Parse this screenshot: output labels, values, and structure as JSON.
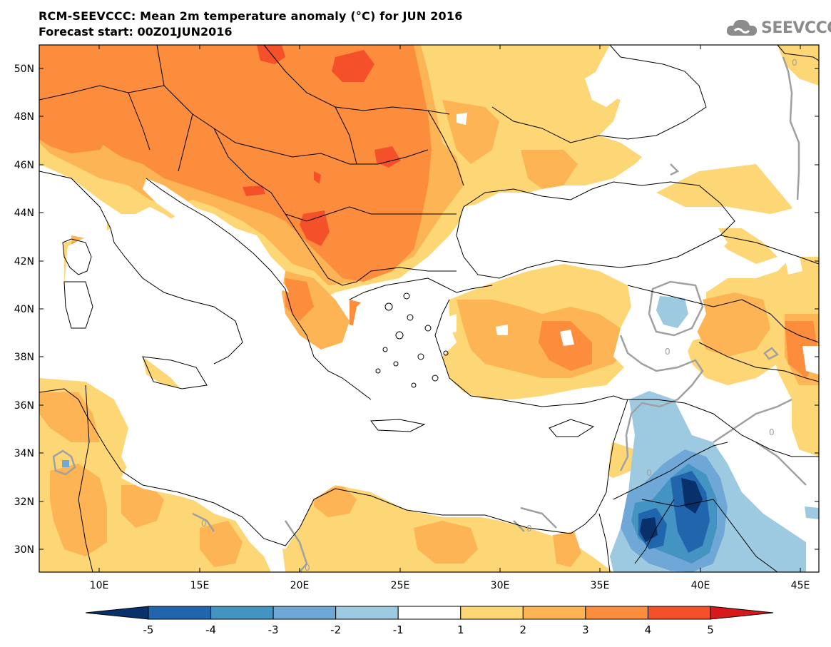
{
  "header": {
    "title": "RCM-SEEVCCC: Mean 2m temperature anomaly (°C) for JUN 2016",
    "subtitle": "Forecast start: 00Z01JUN2016"
  },
  "logo": {
    "text": "SEEVCCC",
    "icon": "cloud-icon"
  },
  "map": {
    "lat_ticks": [
      "50N",
      "48N",
      "46N",
      "44N",
      "42N",
      "40N",
      "38N",
      "36N",
      "34N",
      "32N",
      "30N"
    ],
    "lon_ticks": [
      "10E",
      "15E",
      "20E",
      "25E",
      "30E",
      "35E",
      "40E",
      "45E"
    ],
    "contour_labels": [
      "0",
      "0",
      "0",
      "0",
      "0",
      "0",
      "0"
    ]
  },
  "colorbar": {
    "labels": [
      "-5",
      "-4",
      "-3",
      "-2",
      "-1",
      "1",
      "2",
      "3",
      "4",
      "5"
    ],
    "colors": [
      "#08306b",
      "#2166ac",
      "#4393c3",
      "#6fa8d6",
      "#9ecae1",
      "#ffffff",
      "#fdd776",
      "#fcb454",
      "#fc8d3c",
      "#f4502a",
      "#d7191c"
    ]
  },
  "colors": {
    "anom_1_2": "#fdd776",
    "anom_2_3": "#fcb454",
    "anom_3_4": "#fc8d3c",
    "anom_4_5": "#f4502a",
    "anom_m1_m2": "#9ecae1",
    "anom_m2_m3": "#6fa8d6",
    "anom_m3_m4": "#4393c3",
    "anom_m4_m5": "#2166ac",
    "anom_lt_m5": "#08306b",
    "contour_zero": "#a0a0a0",
    "border": "#000000"
  }
}
